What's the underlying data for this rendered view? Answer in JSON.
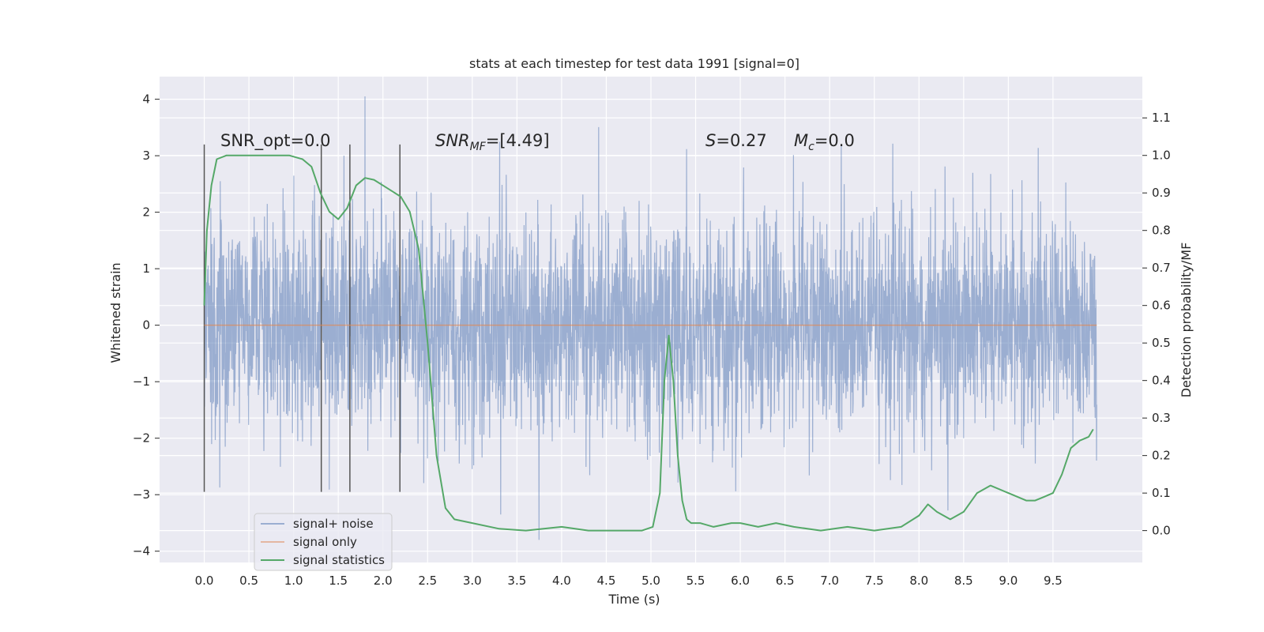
{
  "chart_data": {
    "type": "line",
    "title": "stats at each timestep for test data 1991 [signal=0]",
    "xlabel": "Time (s)",
    "ylabel": "Whitened strain",
    "y2label": "Detection probability/MF",
    "xlim": [
      -0.5,
      10.5
    ],
    "ylim": [
      -4.2,
      4.4
    ],
    "y2lim": [
      -0.085,
      1.21
    ],
    "x_ticks": [
      "0.0",
      "0.5",
      "1.0",
      "1.5",
      "2.0",
      "2.5",
      "3.0",
      "3.5",
      "4.0",
      "4.5",
      "5.0",
      "5.5",
      "6.0",
      "6.5",
      "7.0",
      "7.5",
      "8.0",
      "8.5",
      "9.0",
      "9.5"
    ],
    "y_ticks": [
      "−4",
      "−3",
      "−2",
      "−1",
      "0",
      "1",
      "2",
      "3",
      "4"
    ],
    "y2_ticks": [
      "0.0",
      "0.1",
      "0.2",
      "0.3",
      "0.4",
      "0.5",
      "0.6",
      "0.7",
      "0.8",
      "0.9",
      "1.0",
      "1.1"
    ],
    "grid": true,
    "legend_position": "lower-left",
    "annotations": {
      "snr_opt": "SNR_opt=0.0",
      "snr_mf_main": "SNR",
      "snr_mf_sub": "MF",
      "snr_mf_value": "=[4.49]",
      "s_label": "S",
      "s_value": "=0.27",
      "mc_label": "M",
      "mc_sub": "c",
      "mc_value": "=0.0"
    },
    "vertical_markers_x": [
      0.0,
      1.31,
      1.63,
      2.19
    ],
    "series": [
      {
        "name": "signal+ noise",
        "color": "#4c72b0",
        "axis": "left",
        "x_range": [
          0.0,
          9.99
        ],
        "typical_envelope": [
          -1.5,
          1.5
        ],
        "peak_max": 4.05,
        "peak_min": -3.8
      },
      {
        "name": "signal only",
        "color": "#dd8452",
        "axis": "left",
        "x": [
          0.0,
          9.99
        ],
        "y": [
          0.0,
          0.0
        ]
      },
      {
        "name": "signal statistics",
        "color": "#55a868",
        "axis": "right",
        "x": [
          0.0,
          0.03,
          0.08,
          0.14,
          0.25,
          0.45,
          0.7,
          0.95,
          1.1,
          1.2,
          1.3,
          1.4,
          1.5,
          1.6,
          1.7,
          1.8,
          1.9,
          2.0,
          2.1,
          2.2,
          2.3,
          2.4,
          2.5,
          2.6,
          2.7,
          2.8,
          3.0,
          3.3,
          3.6,
          4.0,
          4.3,
          4.6,
          4.9,
          5.02,
          5.1,
          5.15,
          5.2,
          5.25,
          5.3,
          5.35,
          5.4,
          5.45,
          5.55,
          5.7,
          5.9,
          6.0,
          6.2,
          6.4,
          6.6,
          6.9,
          7.2,
          7.5,
          7.8,
          8.0,
          8.1,
          8.2,
          8.35,
          8.5,
          8.65,
          8.8,
          9.0,
          9.2,
          9.3,
          9.4,
          9.5,
          9.6,
          9.7,
          9.8,
          9.9,
          9.95
        ],
        "y": [
          0.6,
          0.8,
          0.92,
          0.99,
          1.0,
          1.0,
          1.0,
          1.0,
          0.99,
          0.97,
          0.9,
          0.85,
          0.83,
          0.86,
          0.92,
          0.94,
          0.935,
          0.92,
          0.905,
          0.89,
          0.85,
          0.75,
          0.5,
          0.2,
          0.06,
          0.03,
          0.02,
          0.005,
          0.0,
          0.01,
          0.0,
          0.0,
          0.0,
          0.01,
          0.1,
          0.4,
          0.52,
          0.4,
          0.2,
          0.08,
          0.03,
          0.02,
          0.02,
          0.01,
          0.02,
          0.02,
          0.01,
          0.02,
          0.01,
          0.0,
          0.01,
          0.0,
          0.01,
          0.04,
          0.07,
          0.05,
          0.03,
          0.05,
          0.1,
          0.12,
          0.1,
          0.08,
          0.08,
          0.09,
          0.1,
          0.15,
          0.22,
          0.24,
          0.25,
          0.27
        ]
      }
    ]
  }
}
